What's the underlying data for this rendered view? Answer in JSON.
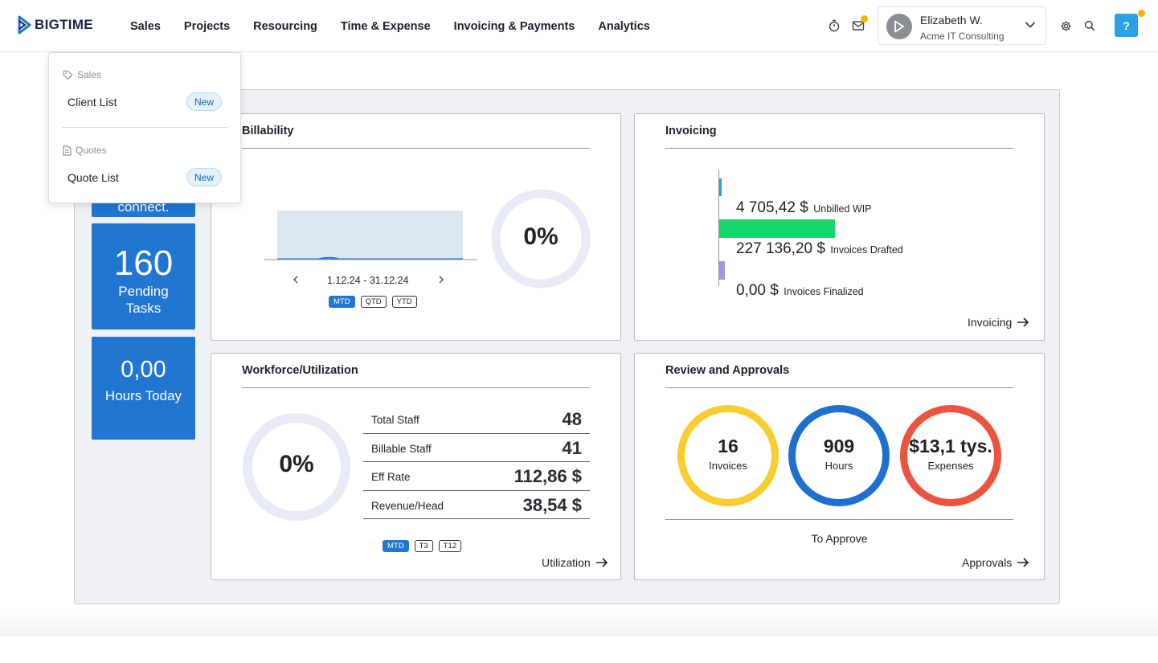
{
  "brand": {
    "name": "BIGTIME",
    "accent": "#2176d2"
  },
  "nav": {
    "items": [
      {
        "label": "Sales"
      },
      {
        "label": "Projects"
      },
      {
        "label": "Resourcing"
      },
      {
        "label": "Time & Expense"
      },
      {
        "label": "Invoicing & Payments"
      },
      {
        "label": "Analytics"
      }
    ]
  },
  "user": {
    "name": "Elizabeth W.",
    "org": "Acme IT Consulting"
  },
  "help": {
    "label": "?"
  },
  "sales_menu": {
    "sections": [
      {
        "title": "Sales",
        "icon": "tag-icon",
        "items": [
          {
            "label": "Client List",
            "badge": "New"
          }
        ]
      },
      {
        "title": "Quotes",
        "icon": "document-icon",
        "items": [
          {
            "label": "Quote List",
            "badge": "New"
          }
        ]
      }
    ]
  },
  "tiles": {
    "partial": {
      "label": "connect."
    },
    "tasks": {
      "value": "160",
      "line1": "Pending",
      "line2": "Tasks"
    },
    "hours": {
      "value": "0,00",
      "label": "Hours Today"
    }
  },
  "billability": {
    "title": "Billability",
    "percent": "0%",
    "range": "1.12.24 - 31.12.24",
    "periods": [
      "MTD",
      "QTD",
      "YTD"
    ],
    "active_period": "MTD"
  },
  "invoicing": {
    "title": "Invoicing",
    "link": "Invoicing",
    "rows": [
      {
        "value": "4 705,42 $",
        "label": "Unbilled WIP",
        "color": "#2aa1e6",
        "fraction": 0.02
      },
      {
        "value": "227 136,20 $",
        "label": "Invoices Drafted",
        "color": "#16d66b",
        "fraction": 1.0
      },
      {
        "value": "0,00 $",
        "label": "Invoices Finalized",
        "color": "#a793e6",
        "fraction": 0.0
      }
    ]
  },
  "workforce": {
    "title": "Workforce/Utilization",
    "percent": "0%",
    "rows": [
      {
        "label": "Total Staff",
        "value": "48"
      },
      {
        "label": "Billable Staff",
        "value": "41"
      },
      {
        "label": "Eff Rate",
        "value": "112,86 $"
      },
      {
        "label": "Revenue/Head",
        "value": "38,54 $"
      }
    ],
    "periods": [
      "MTD",
      "T3",
      "T12"
    ],
    "active_period": "MTD",
    "link": "Utilization"
  },
  "approvals": {
    "title": "Review and Approvals",
    "items": [
      {
        "value": "16",
        "label": "Invoices",
        "color": "#f7cd2f"
      },
      {
        "value": "909",
        "label": "Hours",
        "color": "#1f6fd1"
      },
      {
        "value": "$13,1 tys.",
        "label": "Expenses",
        "color": "#ec5340"
      }
    ],
    "caption": "To Approve",
    "link": "Approvals"
  }
}
